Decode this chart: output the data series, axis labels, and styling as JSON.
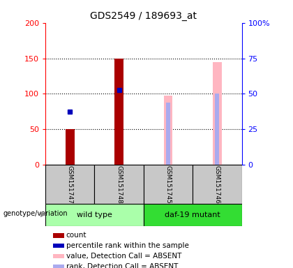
{
  "title": "GDS2549 / 189693_at",
  "samples": [
    "GSM151747",
    "GSM151748",
    "GSM151745",
    "GSM151746"
  ],
  "count_values": [
    50,
    150,
    null,
    null
  ],
  "percentile_values": [
    75,
    105,
    null,
    null
  ],
  "value_absent": [
    null,
    null,
    97,
    145
  ],
  "rank_absent": [
    null,
    null,
    88,
    100
  ],
  "left_ylim": [
    0,
    200
  ],
  "right_ylim": [
    0,
    100
  ],
  "left_yticks": [
    0,
    50,
    100,
    150,
    200
  ],
  "right_yticks": [
    0,
    25,
    50,
    75,
    100
  ],
  "right_yticklabels": [
    "0",
    "25",
    "50",
    "75",
    "100%"
  ],
  "count_color": "#AA0000",
  "percentile_color": "#0000BB",
  "value_absent_color": "#FFB6C1",
  "rank_absent_color": "#AAAAEE",
  "bg_color": "#FFFFFF",
  "sample_bg": "#C8C8C8",
  "wildtype_color": "#AAFFAA",
  "mutant_color": "#33DD33",
  "title_fontsize": 10,
  "tick_fontsize": 8,
  "legend_fontsize": 7.5,
  "bar_width": 0.18
}
